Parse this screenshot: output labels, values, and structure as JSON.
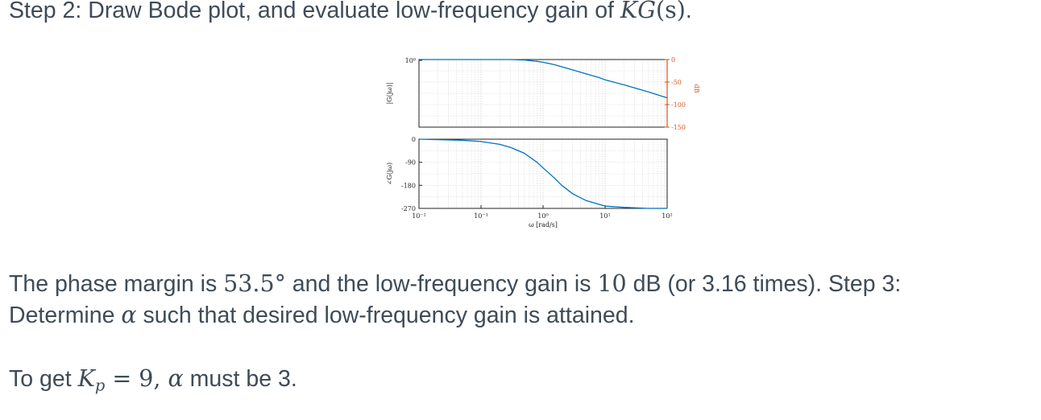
{
  "heading": {
    "prefix": "Step 2: Draw Bode plot, and evaluate low-frequency gain of ",
    "math_K": "K",
    "math_G": "G",
    "math_args": "(s)",
    "suffix": "."
  },
  "para1": {
    "a": "The phase margin is ",
    "pm_value": "53.5°",
    "b": " and the low-frequency gain is ",
    "gain_value": "10",
    "c": " dB (or 3.16 times). Step 3:"
  },
  "para2": {
    "a": "Determine ",
    "alpha": "α",
    "b": " such that desired low-frequency gain is attained."
  },
  "para3": {
    "a": "To get ",
    "K": "K",
    "sub": "p",
    "eq": " = 9, ",
    "alpha": "α",
    "b": " must be 3."
  },
  "figure": {
    "mag_ylabel": "|G(jω)|",
    "mag_ytick": "10⁰",
    "db_label": "dB",
    "db_ticks": [
      "0",
      "-50",
      "-100",
      "-150"
    ],
    "phase_ylabel": "∠G(jω)",
    "phase_ticks": [
      "0",
      "-90",
      "-180",
      "-270"
    ],
    "x_ticks": [
      "10⁻²",
      "10⁻¹",
      "10⁰",
      "10¹",
      "10²"
    ],
    "xlabel": "ω [rad/s]",
    "colors": {
      "curve": "#0072bd",
      "db_axis": "#d95319",
      "grid": "#d0d0d0",
      "axis": "#222222"
    }
  },
  "chart_data": [
    {
      "type": "line",
      "title": "",
      "xlabel": "ω [rad/s]",
      "ylabel": "|G(jω)|",
      "x_scale": "log",
      "xlim": [
        0.01,
        100
      ],
      "secondary_ylabel": "dB",
      "secondary_ylim": [
        -150,
        0
      ],
      "series": [
        {
          "x": [
            0.01,
            0.03,
            0.1,
            0.2,
            0.3,
            0.5,
            0.8,
            1,
            1.5,
            2,
            3,
            5,
            8,
            10,
            20,
            50,
            100
          ],
          "y_db": [
            0,
            0,
            0,
            0,
            0,
            -1,
            -4,
            -6,
            -11,
            -16,
            -23,
            -32,
            -40,
            -45,
            -56,
            -72,
            -85
          ]
        }
      ],
      "grid": true
    },
    {
      "type": "line",
      "title": "",
      "xlabel": "ω [rad/s]",
      "ylabel": "∠G(jω)",
      "x_scale": "log",
      "xlim": [
        0.01,
        100
      ],
      "ylim": [
        -270,
        0
      ],
      "series": [
        {
          "x": [
            0.01,
            0.05,
            0.1,
            0.2,
            0.3,
            0.5,
            0.8,
            1,
            1.5,
            2,
            3,
            5,
            10,
            20,
            50,
            100
          ],
          "y": [
            0,
            -4,
            -9,
            -20,
            -32,
            -55,
            -90,
            -112,
            -150,
            -180,
            -213,
            -240,
            -261,
            -266,
            -270,
            -270
          ]
        }
      ],
      "grid": true
    }
  ]
}
